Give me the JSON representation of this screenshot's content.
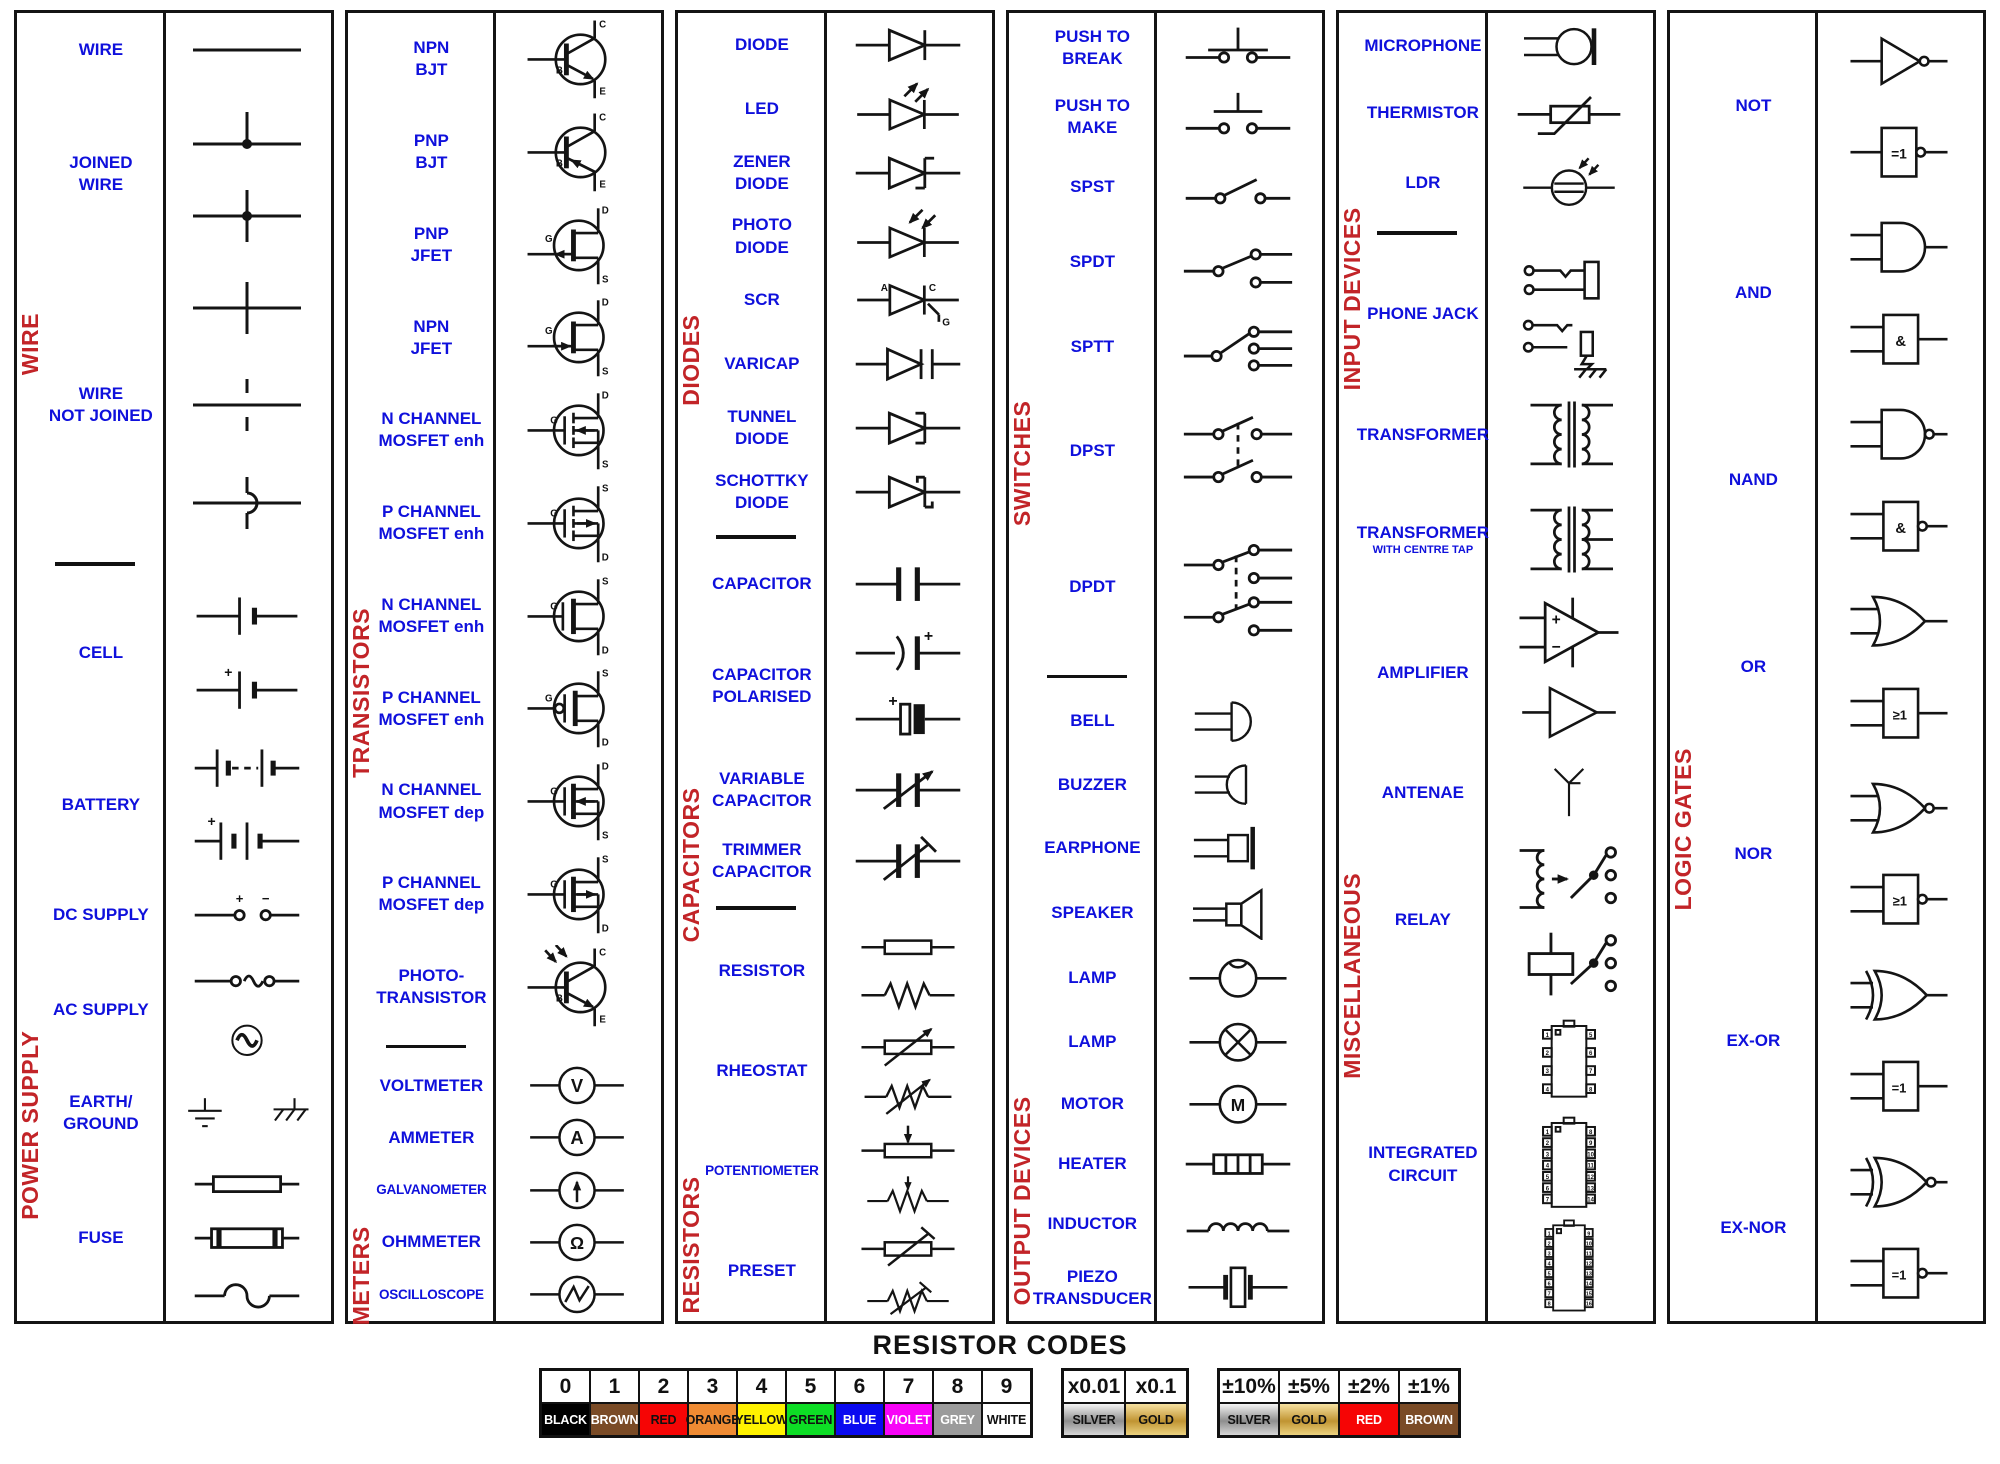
{
  "colors": {
    "label_blue": "#0f10dc",
    "section_red": "#c22428",
    "ink": "#141414"
  },
  "panels": [
    {
      "name": "wire-and-power-supply",
      "sections": [
        {
          "label": "WIRE",
          "rows": [
            {
              "label": "WIRE",
              "symbols": [
                "wire"
              ],
              "wt": 1
            },
            {
              "label": "JOINED\nWIRE",
              "symbols": [
                "joined-t",
                "joined-cross"
              ],
              "wt": 2.3
            },
            {
              "label": "",
              "symbols": [
                "cross-over"
              ],
              "wt": 1.3
            },
            {
              "label": "WIRE\nNOT JOINED",
              "symbols": [
                "not-joined-gap"
              ],
              "wt": 1.3
            },
            {
              "label": "",
              "symbols": [
                "not-joined-hop"
              ],
              "wt": 1.3
            }
          ]
        },
        {
          "label": "POWER SUPPLY",
          "rows": [
            {
              "label": "CELL",
              "symbols": [
                "cell",
                "cell-plus"
              ],
              "wt": 2.1
            },
            {
              "label": "BATTERY",
              "symbols": [
                "battery-dashed",
                "battery-plus"
              ],
              "wt": 2.1
            },
            {
              "label": "DC SUPPLY",
              "symbols": [
                "dc-supply"
              ],
              "wt": 0.95
            },
            {
              "label": "AC SUPPLY",
              "symbols": [
                "ac-supply-line",
                "ac-supply-circle"
              ],
              "wt": 1.7
            },
            {
              "label": "EARTH/\nGROUND",
              "symbols": [
                "earth",
                "chassis-ground"
              ],
              "inline": true,
              "wt": 1.15
            },
            {
              "label": "FUSE",
              "symbols": [
                "fuse-box",
                "fuse-thick",
                "fuse-wavy"
              ],
              "wt": 2.3
            }
          ]
        }
      ]
    },
    {
      "name": "transistors-and-meters",
      "sections": [
        {
          "label": "TRANSISTORS",
          "rows": [
            {
              "label": "NPN\nBJT",
              "symbols": [
                "npn-bjt"
              ],
              "wt": 1
            },
            {
              "label": "PNP\nBJT",
              "symbols": [
                "pnp-bjt"
              ],
              "wt": 1
            },
            {
              "label": "PNP\nJFET",
              "symbols": [
                "pnp-jfet"
              ],
              "wt": 1
            },
            {
              "label": "NPN\nJFET",
              "symbols": [
                "npn-jfet"
              ],
              "wt": 1
            },
            {
              "label": "N CHANNEL\nMOSFET enh",
              "symbols": [
                "mosfet-n-enh-a"
              ],
              "wt": 1
            },
            {
              "label": "P CHANNEL\nMOSFET enh",
              "symbols": [
                "mosfet-p-enh-a"
              ],
              "wt": 1
            },
            {
              "label": "N CHANNEL\nMOSFET enh",
              "symbols": [
                "mosfet-n-enh-b"
              ],
              "wt": 1
            },
            {
              "label": "P CHANNEL\nMOSFET enh",
              "symbols": [
                "mosfet-p-enh-b"
              ],
              "wt": 1
            },
            {
              "label": "N CHANNEL\nMOSFET dep",
              "symbols": [
                "mosfet-n-dep"
              ],
              "wt": 1
            },
            {
              "label": "P CHANNEL\nMOSFET dep",
              "symbols": [
                "mosfet-p-dep"
              ],
              "wt": 1
            },
            {
              "label": "PHOTO-\nTRANSISTOR",
              "symbols": [
                "photo-transistor"
              ],
              "wt": 1
            }
          ]
        },
        {
          "label": "METERS",
          "rows": [
            {
              "label": "VOLTMETER",
              "symbols": [
                "meter-v"
              ],
              "wt": 0.62
            },
            {
              "label": "AMMETER",
              "symbols": [
                "meter-a"
              ],
              "wt": 0.62
            },
            {
              "label": "GALVANOMETER",
              "symbols": [
                "meter-galvo"
              ],
              "wt": 0.62
            },
            {
              "label": "OHMMETER",
              "symbols": [
                "meter-ohm"
              ],
              "wt": 0.62
            },
            {
              "label": "OSCILLOSCOPE",
              "symbols": [
                "meter-scope"
              ],
              "wt": 0.62
            }
          ]
        }
      ]
    },
    {
      "name": "diodes-capacitors-resistors",
      "sections": [
        {
          "label": "DIODES",
          "rows": [
            {
              "label": "DIODE",
              "symbols": [
                "diode"
              ],
              "wt": 1.05
            },
            {
              "label": "LED",
              "symbols": [
                "led"
              ],
              "wt": 1.05
            },
            {
              "label": "ZENER\nDIODE",
              "symbols": [
                "zener"
              ],
              "wt": 1.05
            },
            {
              "label": "PHOTO\nDIODE",
              "symbols": [
                "photo-diode"
              ],
              "wt": 1.05
            },
            {
              "label": "SCR",
              "symbols": [
                "scr"
              ],
              "wt": 1.05
            },
            {
              "label": "VARICAP",
              "symbols": [
                "varicap"
              ],
              "wt": 1.05
            },
            {
              "label": "TUNNEL\nDIODE",
              "symbols": [
                "tunnel"
              ],
              "wt": 1.05
            },
            {
              "label": "SCHOTTKY\nDIODE",
              "symbols": [
                "schottky"
              ],
              "wt": 1.05
            }
          ]
        },
        {
          "label": "CAPACITORS",
          "rows": [
            {
              "label": "CAPACITOR",
              "symbols": [
                "capacitor"
              ],
              "wt": 1.2
            },
            {
              "label": "CAPACITOR\nPOLARISED",
              "symbols": [
                "cap-pol-curved",
                "cap-pol-block"
              ],
              "wt": 2.4
            },
            {
              "label": "VARIABLE\nCAPACITOR",
              "symbols": [
                "variable-capacitor"
              ],
              "wt": 1.3
            },
            {
              "label": "TRIMMER\nCAPACITOR",
              "symbols": [
                "trimmer-capacitor"
              ],
              "wt": 1.2
            }
          ]
        },
        {
          "label": "RESISTORS",
          "rows": [
            {
              "label": "RESISTOR",
              "symbols": [
                "resistor-box",
                "resistor-zigzag"
              ],
              "wt": 1.75
            },
            {
              "label": "RHEOSTAT",
              "symbols": [
                "rheostat-box",
                "rheostat-zigzag"
              ],
              "wt": 1.75
            },
            {
              "label": "POTENTIOMETER",
              "symbols": [
                "potentiometer-box",
                "potentiometer-zigzag"
              ],
              "wt": 1.75
            },
            {
              "label": "PRESET",
              "symbols": [
                "preset-box",
                "preset-zigzag"
              ],
              "wt": 1.75
            }
          ]
        }
      ]
    },
    {
      "name": "switches-and-output-devices",
      "sections": [
        {
          "label": "SWITCHES",
          "rows": [
            {
              "label": "PUSH TO\nBREAK",
              "symbols": [
                "push-to-break"
              ],
              "wt": 1
            },
            {
              "label": "PUSH TO\nMAKE",
              "symbols": [
                "push-to-make"
              ],
              "wt": 1
            },
            {
              "label": "SPST",
              "symbols": [
                "spst"
              ],
              "wt": 1
            },
            {
              "label": "SPDT",
              "symbols": [
                "spdt"
              ],
              "wt": 1.15
            },
            {
              "label": "SPTT",
              "symbols": [
                "sptt"
              ],
              "wt": 1.3
            },
            {
              "label": "DPST",
              "symbols": [
                "dpst"
              ],
              "wt": 1.7
            },
            {
              "label": "DPDT",
              "symbols": [
                "dpdt"
              ],
              "wt": 2.2
            }
          ]
        },
        {
          "label": "OUTPUT DEVICES",
          "rows": [
            {
              "label": "BELL",
              "symbols": [
                "bell"
              ],
              "wt": 0.95
            },
            {
              "label": "BUZZER",
              "symbols": [
                "buzzer"
              ],
              "wt": 0.95
            },
            {
              "label": "EARPHONE",
              "symbols": [
                "earphone"
              ],
              "wt": 0.95
            },
            {
              "label": "SPEAKER",
              "symbols": [
                "speaker"
              ],
              "wt": 1
            },
            {
              "label": "LAMP",
              "symbols": [
                "lamp-dimple"
              ],
              "wt": 0.95
            },
            {
              "label": "LAMP",
              "symbols": [
                "lamp-cross"
              ],
              "wt": 0.95
            },
            {
              "label": "MOTOR",
              "symbols": [
                "motor"
              ],
              "wt": 0.9
            },
            {
              "label": "HEATER",
              "symbols": [
                "heater"
              ],
              "wt": 0.9
            },
            {
              "label": "INDUCTOR",
              "symbols": [
                "inductor"
              ],
              "wt": 0.9
            },
            {
              "label": "PIEZO\nTRANSDUCER",
              "symbols": [
                "piezo"
              ],
              "wt": 1
            }
          ]
        }
      ]
    },
    {
      "name": "input-devices-and-miscellaneous",
      "sections": [
        {
          "label": "INPUT DEVICES",
          "rows": [
            {
              "label": "MICROPHONE",
              "symbols": [
                "microphone"
              ],
              "wt": 1
            },
            {
              "label": "THERMISTOR",
              "symbols": [
                "thermistor"
              ],
              "wt": 1
            },
            {
              "label": "LDR",
              "symbols": [
                "ldr"
              ],
              "wt": 1.1
            }
          ]
        },
        {
          "label": "MISCELLANEOUS",
          "rows": [
            {
              "label": "PHONE JACK",
              "symbols": [
                "phone-jack-a",
                "phone-jack-b"
              ],
              "wt": 2.1
            },
            {
              "label": "TRANSFORMER",
              "symbols": [
                "transformer"
              ],
              "wt": 1.6
            },
            {
              "label": "TRANSFORMER",
              "sub": "WITH CENTRE TAP",
              "symbols": [
                "transformer-ct"
              ],
              "wt": 1.6
            },
            {
              "label": "AMPLIFIER",
              "symbols": [
                "amplifier-opamp",
                "amplifier-tri"
              ],
              "wt": 2.5
            },
            {
              "label": "ANTENAE",
              "symbols": [
                "antenna"
              ],
              "wt": 1.2
            },
            {
              "label": "RELAY",
              "symbols": [
                "relay-coil",
                "relay-box"
              ],
              "wt": 2.7
            },
            {
              "label": "INTEGRATED\nCIRCUIT",
              "symbols": [
                "ic-8",
                "ic-14",
                "ic-16"
              ],
              "wt": 4.8
            }
          ]
        }
      ]
    },
    {
      "name": "logic-gates",
      "sections": [
        {
          "label": "LOGIC GATES",
          "rows": [
            {
              "label": "NOT",
              "symbols": [
                "gate-not",
                "gate-not-iec"
              ],
              "wt": 1
            },
            {
              "label": "AND",
              "symbols": [
                "gate-and",
                "gate-and-iec"
              ],
              "wt": 1
            },
            {
              "label": "NAND",
              "symbols": [
                "gate-nand",
                "gate-nand-iec"
              ],
              "wt": 1
            },
            {
              "label": "OR",
              "symbols": [
                "gate-or",
                "gate-or-iec"
              ],
              "wt": 1
            },
            {
              "label": "NOR",
              "symbols": [
                "gate-nor",
                "gate-nor-iec"
              ],
              "wt": 1
            },
            {
              "label": "EX-OR",
              "symbols": [
                "gate-xor",
                "gate-xor-iec"
              ],
              "wt": 1
            },
            {
              "label": "EX-NOR",
              "symbols": [
                "gate-xnor",
                "gate-xnor-iec"
              ],
              "wt": 1
            }
          ]
        }
      ]
    }
  ],
  "resistor_codes": {
    "title": "RESISTOR CODES",
    "digits": [
      {
        "value": "0",
        "name": "BLACK",
        "bg": "#000000",
        "fg": "#ffffff"
      },
      {
        "value": "1",
        "name": "BROWN",
        "bg": "#7a4b26",
        "fg": "#ffffff"
      },
      {
        "value": "2",
        "name": "RED",
        "bg": "#f60505",
        "fg": "#111111"
      },
      {
        "value": "3",
        "name": "ORANGE",
        "bg": "#ef8b33",
        "fg": "#111111"
      },
      {
        "value": "4",
        "name": "YELLOW",
        "bg": "#fff200",
        "fg": "#111111"
      },
      {
        "value": "5",
        "name": "GREEN",
        "bg": "#0ddd25",
        "fg": "#111111"
      },
      {
        "value": "6",
        "name": "BLUE",
        "bg": "#0a0af0",
        "fg": "#ffffff"
      },
      {
        "value": "7",
        "name": "VIOLET",
        "bg": "#f704f7",
        "fg": "#ffffff"
      },
      {
        "value": "8",
        "name": "GREY",
        "bg": "#9b9b9b",
        "fg": "#ffffff"
      },
      {
        "value": "9",
        "name": "WHITE",
        "bg": "#ffffff",
        "fg": "#111111"
      }
    ],
    "multipliers": [
      {
        "value": "x0.01",
        "name": "SILVER",
        "bg": "silver",
        "fg": "#111111"
      },
      {
        "value": "x0.1",
        "name": "GOLD",
        "bg": "gold",
        "fg": "#111111"
      }
    ],
    "tolerances": [
      {
        "value": "±10%",
        "name": "SILVER",
        "bg": "silver",
        "fg": "#111111"
      },
      {
        "value": "±5%",
        "name": "GOLD",
        "bg": "gold",
        "fg": "#111111"
      },
      {
        "value": "±2%",
        "name": "RED",
        "bg": "#f60505",
        "fg": "#ffffff"
      },
      {
        "value": "±1%",
        "name": "BROWN",
        "bg": "#7a4b26",
        "fg": "#ffffff"
      }
    ]
  }
}
